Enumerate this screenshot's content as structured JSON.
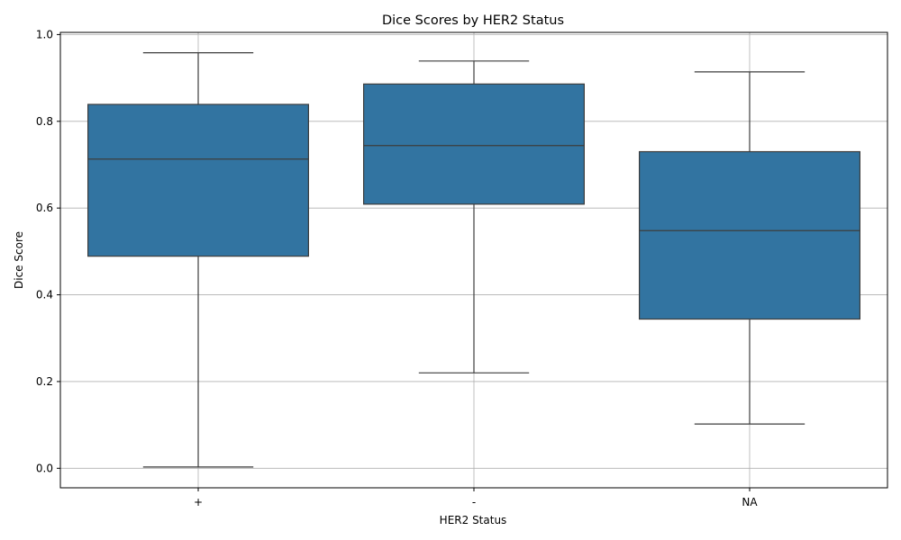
{
  "chart_data": {
    "type": "box",
    "title": "Dice Scores by HER2 Status",
    "xlabel": "HER2 Status",
    "ylabel": "Dice Score",
    "categories": [
      "+",
      "-",
      "NA"
    ],
    "ylim": [
      -0.045,
      1.005
    ],
    "yticks": [
      0.0,
      0.2,
      0.4,
      0.6,
      0.8,
      1.0
    ],
    "ytick_labels": [
      "0.0",
      "0.2",
      "0.4",
      "0.6",
      "0.8",
      "1.0"
    ],
    "grid": true,
    "box_color": "#3274a1",
    "line_color": "#3d3d3d",
    "boxes": [
      {
        "category": "+",
        "whisker_low": 0.003,
        "q1": 0.489,
        "median": 0.713,
        "q3": 0.839,
        "whisker_high": 0.958
      },
      {
        "category": "-",
        "whisker_low": 0.22,
        "q1": 0.609,
        "median": 0.744,
        "q3": 0.886,
        "whisker_high": 0.939
      },
      {
        "category": "NA",
        "whisker_low": 0.102,
        "q1": 0.344,
        "median": 0.548,
        "q3": 0.73,
        "whisker_high": 0.914
      }
    ]
  }
}
